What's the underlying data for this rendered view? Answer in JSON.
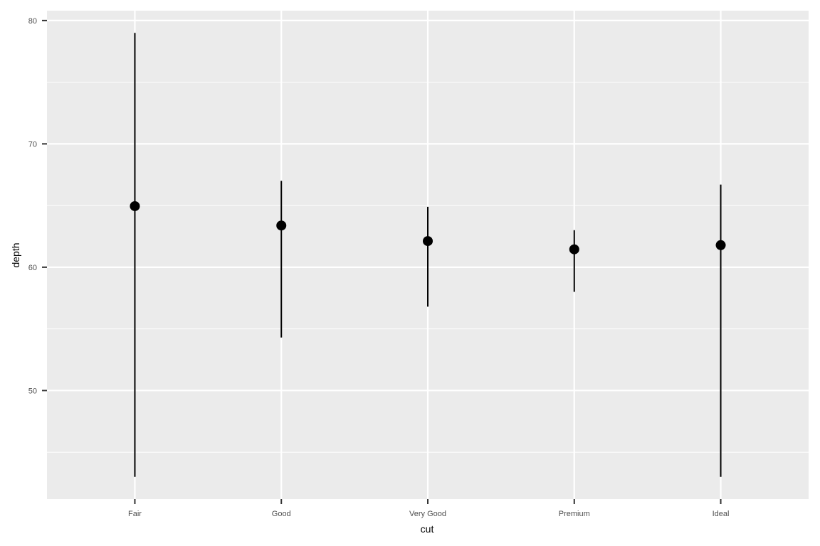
{
  "chart_data": {
    "type": "pointrange",
    "xlabel": "cut",
    "ylabel": "depth",
    "categories": [
      "Fair",
      "Good",
      "Very Good",
      "Premium",
      "Ideal"
    ],
    "y": [
      64.95,
      63.38,
      62.12,
      61.45,
      61.79
    ],
    "ymin": [
      43.0,
      54.3,
      56.8,
      58.0,
      43.0
    ],
    "ymax": [
      79.0,
      67.0,
      64.9,
      63.0,
      66.7
    ],
    "ylim": [
      41.2,
      80.8
    ],
    "yticks": [
      50,
      60,
      70,
      80
    ],
    "yminor": [
      45,
      55,
      65,
      75
    ],
    "grid": true,
    "legend": "none",
    "colors": {
      "panel": "#EBEBEB",
      "grid": "#FFFFFF",
      "mark": "#000000",
      "tick_text": "#4D4D4D",
      "tick": "#333333"
    }
  }
}
